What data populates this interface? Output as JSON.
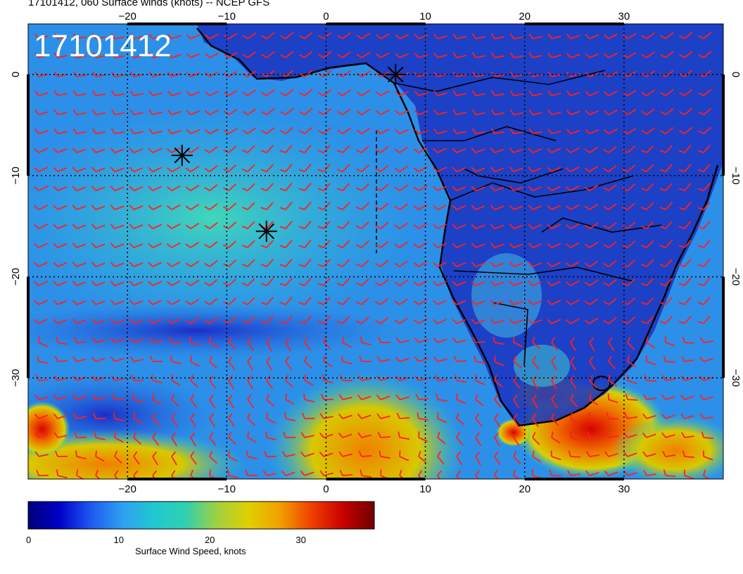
{
  "title": "17101412, 060 Surface winds (knots) -- NCEP GFS",
  "timestamp_overlay": "17101412",
  "map": {
    "lon_range": [
      -30,
      40
    ],
    "lat_range": [
      -40,
      5
    ],
    "lon_ticks": [
      -20,
      -10,
      0,
      10,
      20,
      30
    ],
    "lon_tick_labels": [
      "−20",
      "−10",
      "0",
      "10",
      "20",
      "30"
    ],
    "lat_ticks": [
      0,
      -10,
      -20,
      -30
    ],
    "lat_tick_labels": [
      "0",
      "−10",
      "−20",
      "−30"
    ],
    "grid": true,
    "barb_color": "#ff2020",
    "station_markers": [
      {
        "lon": 7,
        "lat": 0
      },
      {
        "lon": -14.5,
        "lat": -8
      },
      {
        "lon": -6,
        "lat": -15.5
      }
    ]
  },
  "colorbar": {
    "label": "Surface Wind Speed, knots",
    "range": [
      0,
      38
    ],
    "ticks": [
      0,
      10,
      20,
      30
    ],
    "tick_labels": [
      "0",
      "10",
      "20",
      "30"
    ],
    "colors": [
      "#00007a",
      "#0000c8",
      "#1e5af0",
      "#2ea0f0",
      "#20c8d0",
      "#30d0b0",
      "#a0d040",
      "#e0d000",
      "#f0a000",
      "#f04000",
      "#c80000",
      "#700000"
    ]
  }
}
